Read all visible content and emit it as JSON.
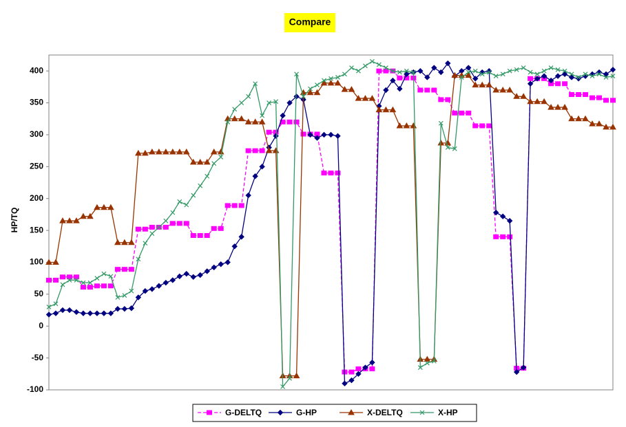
{
  "chart_data": {
    "type": "line",
    "title": "Compare",
    "ylabel": "HP/TQ",
    "ylim": [
      -100,
      425
    ],
    "yticks": [
      -100,
      -50,
      0,
      50,
      100,
      150,
      200,
      250,
      300,
      350,
      400
    ],
    "series": [
      {
        "name": "G-DELTQ",
        "color": "#ff00ff",
        "marker": "square",
        "line_style": "dashed",
        "values": [
          72,
          72,
          77,
          77,
          77,
          61,
          61,
          63,
          63,
          63,
          89,
          89,
          89,
          152,
          152,
          155,
          155,
          155,
          161,
          161,
          161,
          142,
          142,
          142,
          153,
          153,
          189,
          189,
          189,
          275,
          275,
          275,
          304,
          304,
          320,
          320,
          320,
          301,
          301,
          301,
          240,
          240,
          240,
          -72,
          -72,
          -67,
          -67,
          -67,
          400,
          400,
          400,
          389,
          389,
          389,
          370,
          370,
          370,
          355,
          355,
          334,
          334,
          334,
          314,
          314,
          314,
          140,
          140,
          140,
          -66,
          -66,
          388,
          388,
          388,
          380,
          380,
          380,
          363,
          363,
          363,
          358,
          358,
          354,
          354
        ]
      },
      {
        "name": "G-HP",
        "color": "#000080",
        "marker": "diamond",
        "line_style": "solid",
        "values": [
          18,
          20,
          25,
          25,
          22,
          20,
          20,
          20,
          20,
          20,
          27,
          27,
          28,
          45,
          55,
          58,
          63,
          68,
          72,
          78,
          82,
          77,
          80,
          86,
          92,
          97,
          100,
          125,
          140,
          205,
          235,
          250,
          280,
          298,
          330,
          350,
          360,
          355,
          300,
          295,
          300,
          300,
          298,
          -90,
          -85,
          -75,
          -65,
          -57,
          345,
          370,
          385,
          372,
          395,
          398,
          400,
          390,
          405,
          398,
          412,
          392,
          400,
          405,
          388,
          398,
          400,
          178,
          172,
          165,
          -72,
          -65,
          380,
          388,
          392,
          385,
          392,
          395,
          390,
          388,
          392,
          395,
          398,
          395,
          402
        ]
      },
      {
        "name": "X-DELTQ",
        "color": "#993300",
        "marker": "triangle",
        "line_style": "solid",
        "values": [
          100,
          100,
          165,
          165,
          165,
          172,
          172,
          186,
          186,
          186,
          131,
          131,
          131,
          271,
          271,
          273,
          273,
          273,
          273,
          273,
          273,
          257,
          257,
          257,
          273,
          273,
          325,
          325,
          325,
          320,
          320,
          320,
          275,
          275,
          -78,
          -78,
          -78,
          366,
          366,
          366,
          381,
          381,
          381,
          371,
          371,
          357,
          357,
          357,
          339,
          339,
          339,
          314,
          314,
          314,
          -52,
          -52,
          -52,
          287,
          287,
          393,
          393,
          393,
          378,
          378,
          378,
          370,
          370,
          370,
          360,
          360,
          352,
          352,
          352,
          343,
          343,
          343,
          325,
          325,
          325,
          317,
          317,
          312,
          312
        ]
      },
      {
        "name": "X-HP",
        "color": "#339966",
        "marker": "x",
        "line_style": "solid",
        "values": [
          30,
          35,
          65,
          72,
          72,
          68,
          68,
          75,
          82,
          78,
          45,
          48,
          55,
          105,
          130,
          145,
          155,
          165,
          178,
          195,
          190,
          205,
          220,
          235,
          255,
          265,
          320,
          340,
          350,
          360,
          380,
          330,
          350,
          352,
          -95,
          -82,
          395,
          360,
          372,
          378,
          385,
          388,
          390,
          395,
          405,
          400,
          408,
          415,
          410,
          405,
          400,
          398,
          400,
          398,
          -65,
          -58,
          -55,
          318,
          280,
          278,
          390,
          398,
          400,
          395,
          398,
          392,
          395,
          400,
          402,
          405,
          398,
          395,
          400,
          405,
          402,
          400,
          395,
          390,
          395,
          392,
          395,
          390,
          392
        ]
      }
    ]
  }
}
